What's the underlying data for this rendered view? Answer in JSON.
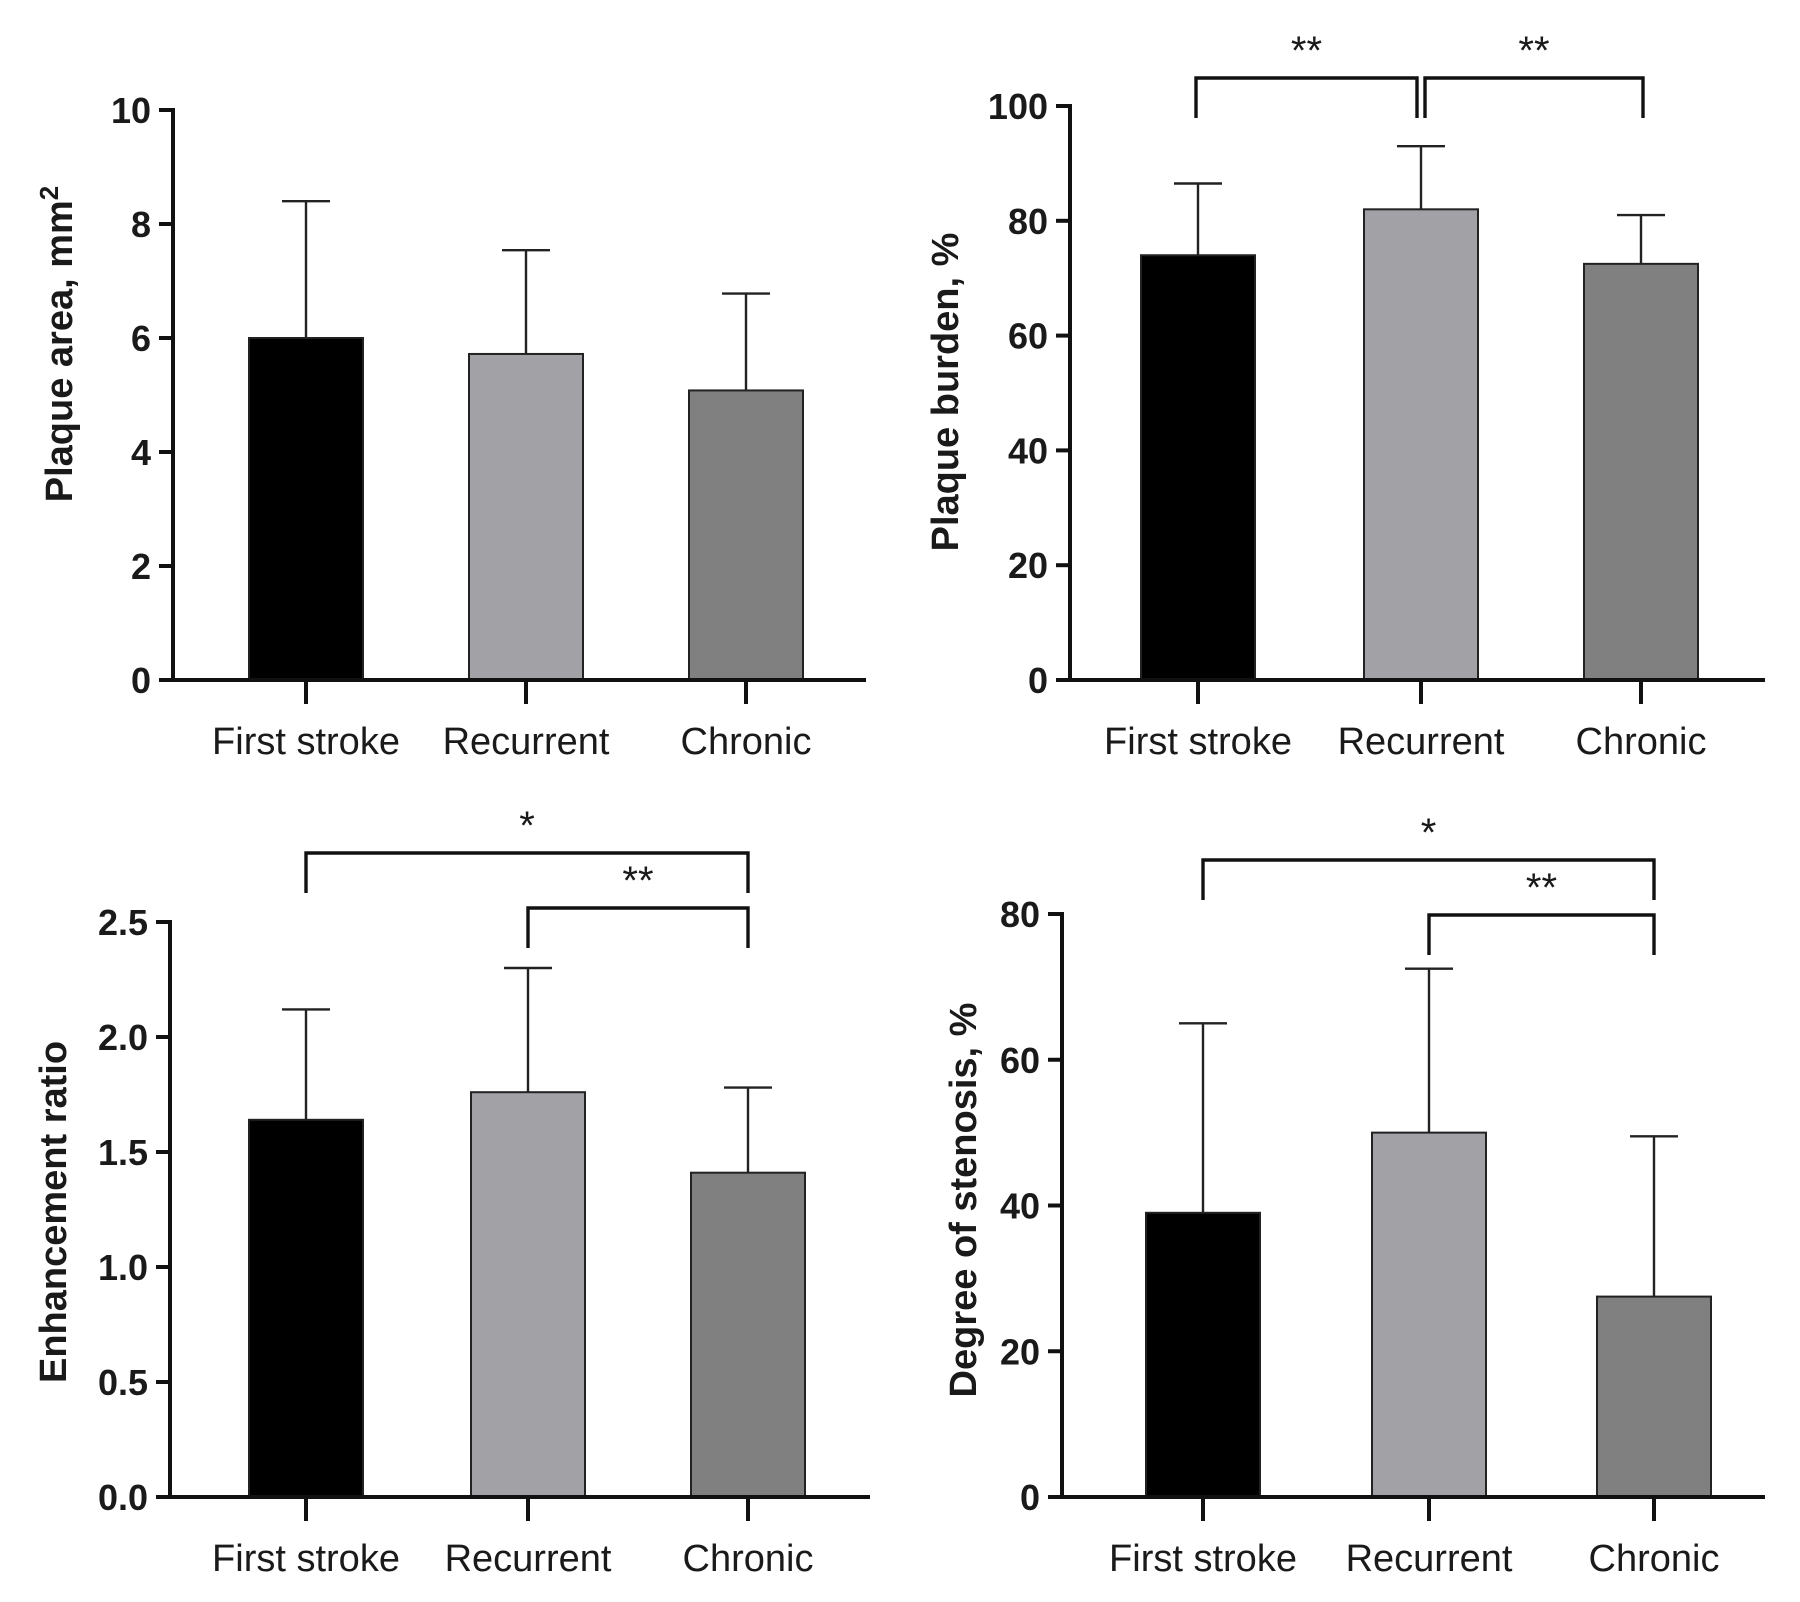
{
  "chart_data": [
    {
      "type": "bar",
      "title": "",
      "ylabel": "Plaque area, mm",
      "ylabel_sup": "2",
      "ylim": [
        0,
        10
      ],
      "yticks": [
        "0",
        "2",
        "4",
        "6",
        "8",
        "10"
      ],
      "categories": [
        "First stroke",
        "Recurrent",
        "Chronic"
      ],
      "values": [
        6.0,
        5.72,
        5.08
      ],
      "errors": [
        2.4,
        1.82,
        1.7
      ],
      "bar_colors": [
        "#000000",
        "#a2a2a6",
        "#808080"
      ],
      "significance": []
    },
    {
      "type": "bar",
      "title": "",
      "ylabel": "Plaque burden, %",
      "ylim": [
        0,
        100
      ],
      "yticks": [
        "0",
        "20",
        "40",
        "60",
        "80",
        "100"
      ],
      "categories": [
        "First stroke",
        "Recurrent",
        "Chronic"
      ],
      "values": [
        74,
        82,
        72.5
      ],
      "errors": [
        12.5,
        11,
        8.5
      ],
      "bar_colors": [
        "#000000",
        "#a2a2a6",
        "#808080"
      ],
      "significance": [
        {
          "from": 0,
          "to": 1,
          "label": "**",
          "level": 1
        },
        {
          "from": 1,
          "to": 2,
          "label": "**",
          "level": 1
        }
      ]
    },
    {
      "type": "bar",
      "title": "",
      "ylabel": "Enhancement ratio",
      "ylim": [
        0,
        2.5
      ],
      "yticks": [
        "0.0",
        "0.5",
        "1.0",
        "1.5",
        "2.0",
        "2.5"
      ],
      "categories": [
        "First stroke",
        "Recurrent",
        "Chronic"
      ],
      "values": [
        1.64,
        1.76,
        1.41
      ],
      "errors": [
        0.48,
        0.54,
        0.37
      ],
      "bar_colors": [
        "#000000",
        "#a2a2a6",
        "#808080"
      ],
      "significance": [
        {
          "from": 0,
          "to": 2,
          "label": "*",
          "level": 2
        },
        {
          "from": 1,
          "to": 2,
          "label": "**",
          "level": 1
        }
      ]
    },
    {
      "type": "bar",
      "title": "",
      "ylabel": "Degree of stenosis, %",
      "ylim": [
        0,
        80
      ],
      "yticks": [
        "0",
        "20",
        "40",
        "60",
        "80"
      ],
      "categories": [
        "First stroke",
        "Recurrent",
        "Chronic"
      ],
      "values": [
        39,
        50,
        27.5
      ],
      "errors": [
        26,
        22.5,
        22
      ],
      "bar_colors": [
        "#000000",
        "#a2a2a6",
        "#808080"
      ],
      "significance": [
        {
          "from": 0,
          "to": 2,
          "label": "*",
          "level": 2
        },
        {
          "from": 1,
          "to": 2,
          "label": "**",
          "level": 1
        }
      ]
    }
  ]
}
